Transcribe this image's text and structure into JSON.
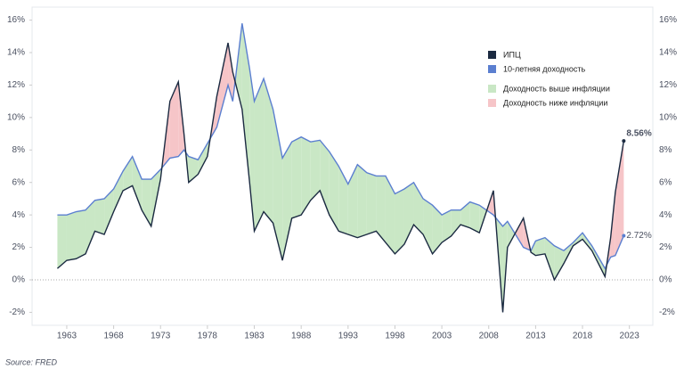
{
  "chart_data": {
    "type": "line",
    "x": [
      1962,
      1963,
      1964,
      1965,
      1966,
      1967,
      1968,
      1969,
      1970,
      1971,
      1972,
      1973,
      1974,
      1974.9,
      1975.5,
      1976,
      1977,
      1978,
      1979,
      1980.2,
      1980.7,
      1981.7,
      1982.5,
      1983,
      1984,
      1985,
      1986,
      1987,
      1988,
      1989,
      1990,
      1991,
      1992,
      1993,
      1994,
      1995,
      1996,
      1997,
      1998,
      1999,
      2000,
      2001,
      2002,
      2003,
      2004,
      2005,
      2006,
      2007,
      2008.5,
      2009.5,
      2010,
      2011.7,
      2012.5,
      2013,
      2014,
      2015,
      2016,
      2017,
      2018,
      2019,
      2020.4,
      2021,
      2021.5,
      2022.4
    ],
    "series": [
      {
        "name": "ИПЦ",
        "color": "#1b2a41",
        "values": [
          0.7,
          1.2,
          1.3,
          1.6,
          3.0,
          2.8,
          4.2,
          5.5,
          5.8,
          4.3,
          3.3,
          6.2,
          11.0,
          12.2,
          9.0,
          6.0,
          6.5,
          7.6,
          11.3,
          14.6,
          12.8,
          10.5,
          6.0,
          3.0,
          4.2,
          3.5,
          1.2,
          3.8,
          4.0,
          4.9,
          5.5,
          4.0,
          3.0,
          2.8,
          2.6,
          2.8,
          3.0,
          2.3,
          1.6,
          2.2,
          3.4,
          2.8,
          1.6,
          2.3,
          2.7,
          3.4,
          3.2,
          2.9,
          5.5,
          -2.0,
          2.0,
          3.8,
          1.7,
          1.5,
          1.6,
          0.0,
          1.0,
          2.1,
          2.5,
          1.8,
          0.2,
          2.6,
          5.4,
          8.56
        ],
        "value_labels": [
          null,
          null,
          null,
          null,
          null,
          null,
          null,
          null,
          null,
          null,
          null,
          null,
          null,
          null,
          null,
          null,
          null,
          null,
          null,
          null,
          null,
          null,
          null,
          null,
          null,
          null,
          null,
          null,
          null,
          null,
          null,
          null,
          null,
          null,
          null,
          null,
          null,
          null,
          null,
          null,
          null,
          null,
          null,
          null,
          null,
          null,
          null,
          null,
          null,
          null,
          null,
          null,
          null,
          null,
          null,
          null,
          null,
          null,
          null,
          null,
          null,
          null,
          null,
          "8.56%"
        ]
      },
      {
        "name": "10-летняя доходность",
        "color": "#5b7fd0",
        "values": [
          4.0,
          4.0,
          4.2,
          4.3,
          4.9,
          5.0,
          5.6,
          6.7,
          7.6,
          6.2,
          6.2,
          6.8,
          7.5,
          7.6,
          8.0,
          7.6,
          7.4,
          8.4,
          9.4,
          12.0,
          11.0,
          15.8,
          13.0,
          11.0,
          12.4,
          10.5,
          7.5,
          8.5,
          8.8,
          8.5,
          8.6,
          7.9,
          7.0,
          5.9,
          7.1,
          6.6,
          6.4,
          6.4,
          5.3,
          5.6,
          6.0,
          5.0,
          4.6,
          4.0,
          4.3,
          4.3,
          4.8,
          4.6,
          4.0,
          3.3,
          3.6,
          2.0,
          1.8,
          2.4,
          2.6,
          2.1,
          1.8,
          2.3,
          2.9,
          2.1,
          0.7,
          1.4,
          1.5,
          2.72
        ],
        "value_labels": [
          null,
          null,
          null,
          null,
          null,
          null,
          null,
          null,
          null,
          null,
          null,
          null,
          null,
          null,
          null,
          null,
          null,
          null,
          null,
          null,
          null,
          null,
          null,
          null,
          null,
          null,
          null,
          null,
          null,
          null,
          null,
          null,
          null,
          null,
          null,
          null,
          null,
          null,
          null,
          null,
          null,
          null,
          null,
          null,
          null,
          null,
          null,
          null,
          null,
          null,
          null,
          null,
          null,
          null,
          null,
          null,
          null,
          null,
          null,
          null,
          null,
          null,
          null,
          "2.72%"
        ]
      }
    ],
    "fills": [
      {
        "name": "Доходность выше инфляции",
        "color": "#c9e7c5"
      },
      {
        "name": "Доходность ниже инфляции",
        "color": "#f6c5c8"
      }
    ],
    "xlim": [
      1959.3,
      2025.5
    ],
    "xticks": [
      1963,
      1968,
      1973,
      1978,
      1983,
      1988,
      1993,
      1998,
      2003,
      2008,
      2013,
      2018,
      2023
    ],
    "ylim": [
      -2.8,
      16.8
    ],
    "yticks": [
      {
        "value": -2,
        "label": "-2%"
      },
      {
        "value": 0,
        "label": "0%"
      },
      {
        "value": 2,
        "label": "2%"
      },
      {
        "value": 4,
        "label": "4%"
      },
      {
        "value": 6,
        "label": "6%"
      },
      {
        "value": 8,
        "label": "8%"
      },
      {
        "value": 10,
        "label": "10%"
      },
      {
        "value": 12,
        "label": "12%"
      },
      {
        "value": 14,
        "label": "14%"
      },
      {
        "value": 16,
        "label": "16%"
      }
    ],
    "source": "Source: FRED"
  }
}
